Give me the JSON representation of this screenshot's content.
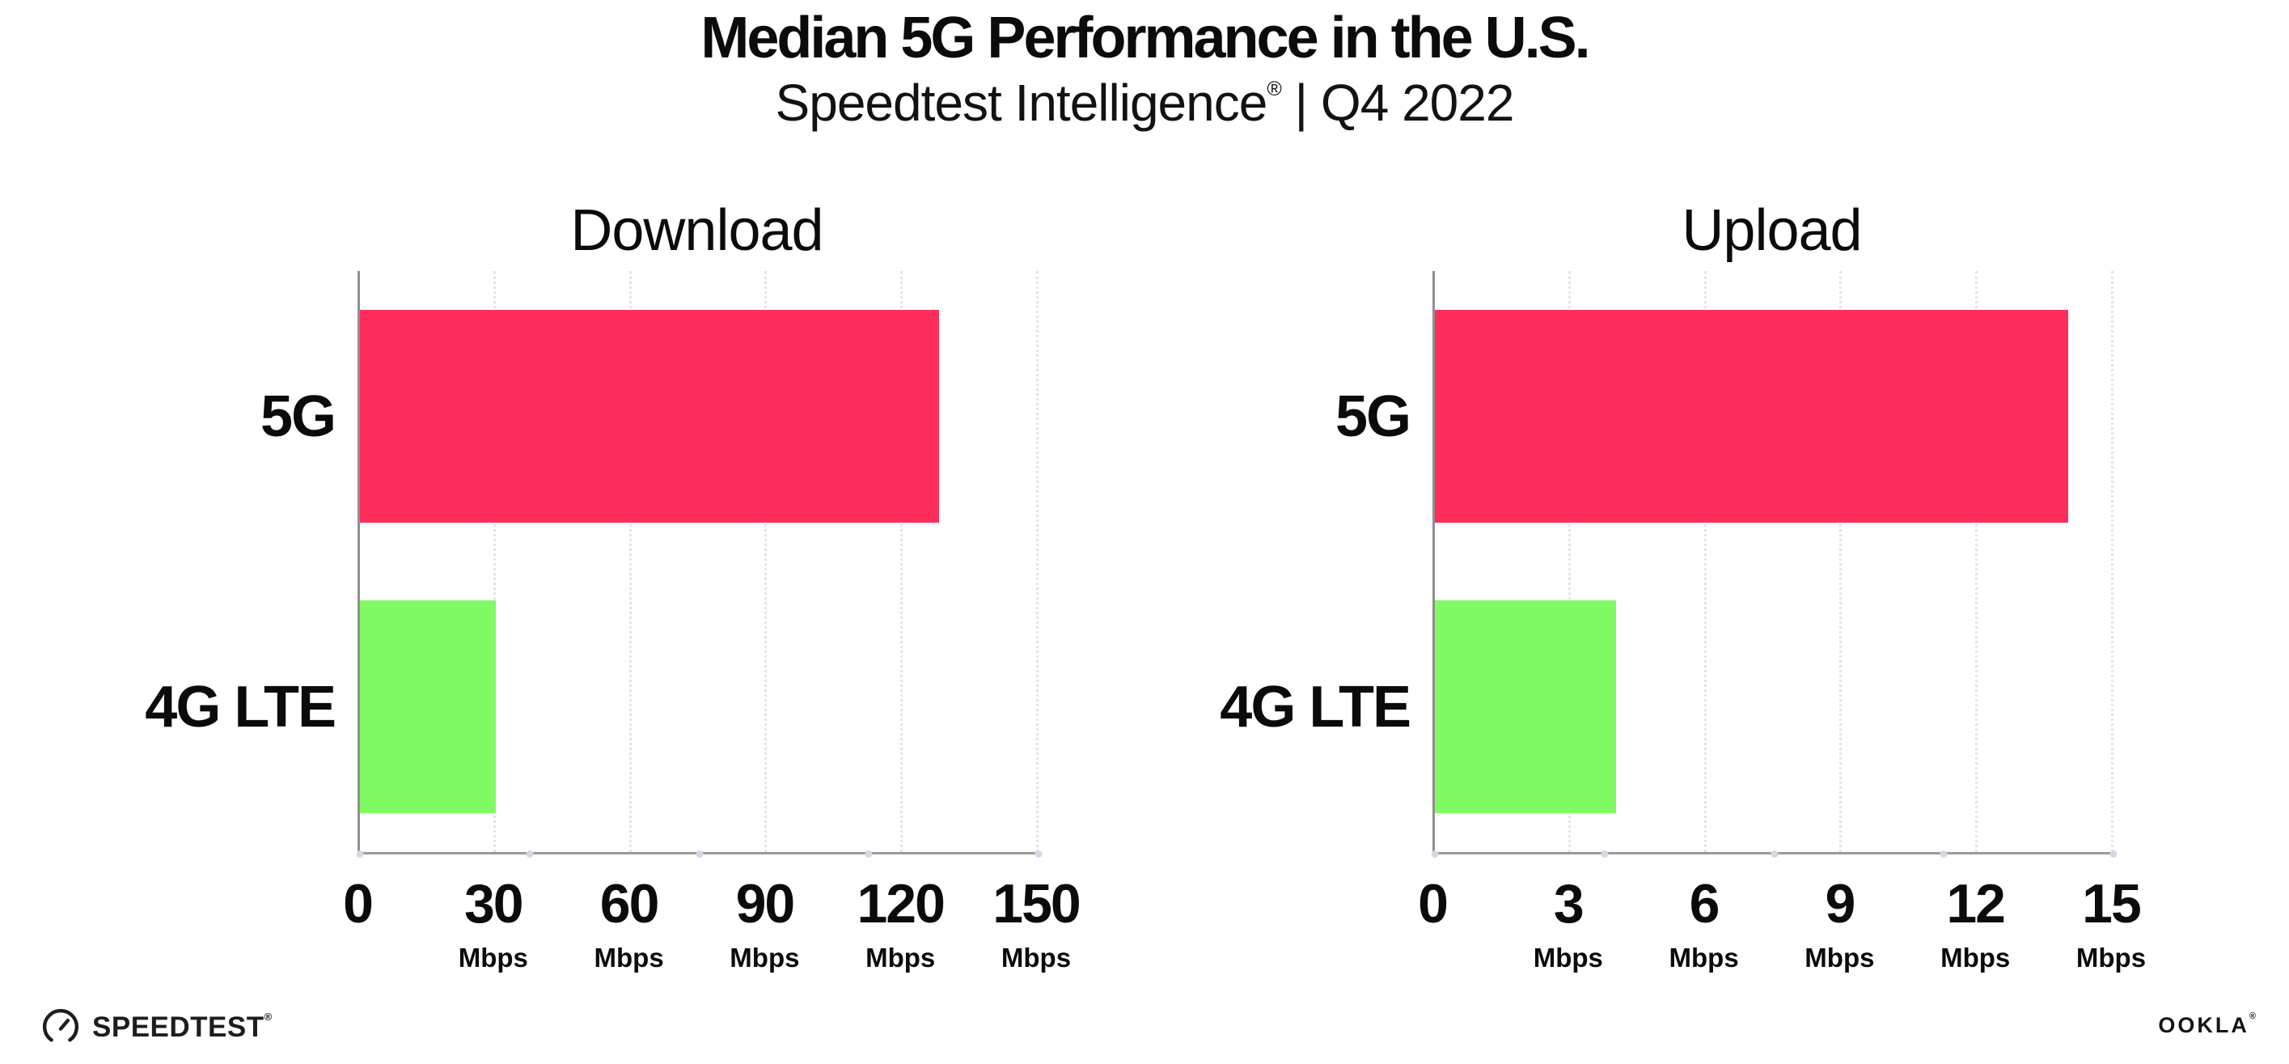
{
  "header": {
    "title": "Median 5G Performance in the U.S.",
    "subtitle_brand": "Speedtest Intelligence",
    "subtitle_reg": "®",
    "subtitle_suffix": " | Q4 2022"
  },
  "colors": {
    "bar_5g": "#FF2D5C",
    "bar_4g_lte": "#80FB63",
    "gridline": "#E2E2EE",
    "x_axis": "#9B9B9B",
    "y_axis": "#8F8F8F",
    "axis_dot": "#D6D6E4",
    "text": "#0B0B0B"
  },
  "chart_data": [
    {
      "type": "bar",
      "orientation": "horizontal",
      "title": "Download",
      "categories": [
        "5G",
        "4G LTE"
      ],
      "values": [
        128,
        30
      ],
      "unit": "Mbps",
      "xlim": [
        0,
        150
      ],
      "xticks": [
        0,
        30,
        60,
        90,
        120,
        150
      ],
      "tick_unit_label": "Mbps",
      "grid": "vertical-dotted",
      "legend": "none",
      "bar_colors": [
        "#FF2D5C",
        "#80FB63"
      ]
    },
    {
      "type": "bar",
      "orientation": "horizontal",
      "title": "Upload",
      "categories": [
        "5G",
        "4G LTE"
      ],
      "values": [
        14,
        4
      ],
      "unit": "Mbps",
      "xlim": [
        0,
        15
      ],
      "xticks": [
        0,
        3,
        6,
        9,
        12,
        15
      ],
      "tick_unit_label": "Mbps",
      "grid": "vertical-dotted",
      "legend": "none",
      "bar_colors": [
        "#FF2D5C",
        "#80FB63"
      ]
    }
  ],
  "footer": {
    "speedtest_label": "SPEEDTEST",
    "speedtest_reg": "®",
    "ookla_label": "OOKLA",
    "ookla_reg": "®"
  }
}
